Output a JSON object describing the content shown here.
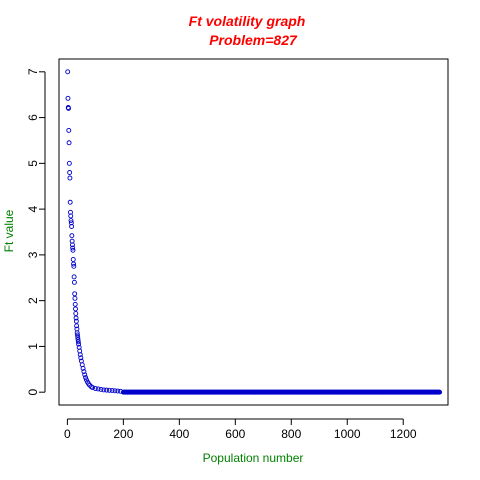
{
  "chart_data": {
    "type": "scatter",
    "title": "Ft volatility graph",
    "subtitle": "Problem=827",
    "xlabel": "Population number",
    "ylabel": "Ft value",
    "xlim": [
      -30,
      1360
    ],
    "ylim": [
      -0.28,
      7.28
    ],
    "xticks": [
      0,
      200,
      400,
      600,
      800,
      1000,
      1200
    ],
    "yticks": [
      0,
      1,
      2,
      3,
      4,
      5,
      6,
      7
    ],
    "grid": false,
    "legend": "none",
    "n_points": 1331,
    "points_head": [
      [
        1,
        7.0
      ],
      [
        2,
        6.42
      ],
      [
        3,
        6.22
      ],
      [
        4,
        6.2
      ],
      [
        5,
        5.72
      ],
      [
        6,
        5.45
      ],
      [
        7,
        5.0
      ],
      [
        8,
        4.8
      ],
      [
        9,
        4.68
      ],
      [
        10,
        4.15
      ],
      [
        11,
        3.93
      ],
      [
        12,
        3.85
      ],
      [
        13,
        3.75
      ],
      [
        14,
        3.7
      ],
      [
        15,
        3.62
      ],
      [
        16,
        3.42
      ],
      [
        17,
        3.3
      ],
      [
        18,
        3.22
      ],
      [
        19,
        3.15
      ],
      [
        20,
        3.1
      ],
      [
        21,
        2.9
      ],
      [
        22,
        2.8
      ],
      [
        23,
        2.75
      ],
      [
        24,
        2.52
      ],
      [
        25,
        2.4
      ],
      [
        26,
        2.15
      ],
      [
        27,
        2.05
      ],
      [
        28,
        1.92
      ],
      [
        29,
        1.82
      ],
      [
        30,
        1.72
      ],
      [
        31,
        1.62
      ],
      [
        32,
        1.55
      ],
      [
        33,
        1.45
      ],
      [
        34,
        1.38
      ],
      [
        35,
        1.3
      ],
      [
        36,
        1.25
      ],
      [
        37,
        1.2
      ],
      [
        38,
        1.15
      ],
      [
        39,
        1.1
      ],
      [
        40,
        1.05
      ],
      [
        42,
        0.98
      ],
      [
        44,
        0.9
      ],
      [
        46,
        0.82
      ],
      [
        48,
        0.75
      ],
      [
        50,
        0.68
      ],
      [
        53,
        0.6
      ],
      [
        56,
        0.52
      ],
      [
        59,
        0.45
      ],
      [
        62,
        0.38
      ],
      [
        65,
        0.32
      ],
      [
        68,
        0.27
      ],
      [
        72,
        0.22
      ],
      [
        76,
        0.18
      ],
      [
        80,
        0.15
      ],
      [
        85,
        0.12
      ],
      [
        90,
        0.1
      ],
      [
        100,
        0.08
      ],
      [
        110,
        0.07
      ],
      [
        120,
        0.06
      ],
      [
        130,
        0.05
      ],
      [
        140,
        0.045
      ],
      [
        150,
        0.04
      ],
      [
        160,
        0.035
      ],
      [
        170,
        0.03
      ],
      [
        180,
        0.025
      ],
      [
        190,
        0.02
      ]
    ],
    "tail": {
      "x_start": 200,
      "x_end": 1331,
      "y": 0.0
    },
    "colors": {
      "title": "#ff0000",
      "axis_label": "#008000",
      "points": "#0000cc",
      "axes": "#000000"
    },
    "marker": "open-circle"
  }
}
